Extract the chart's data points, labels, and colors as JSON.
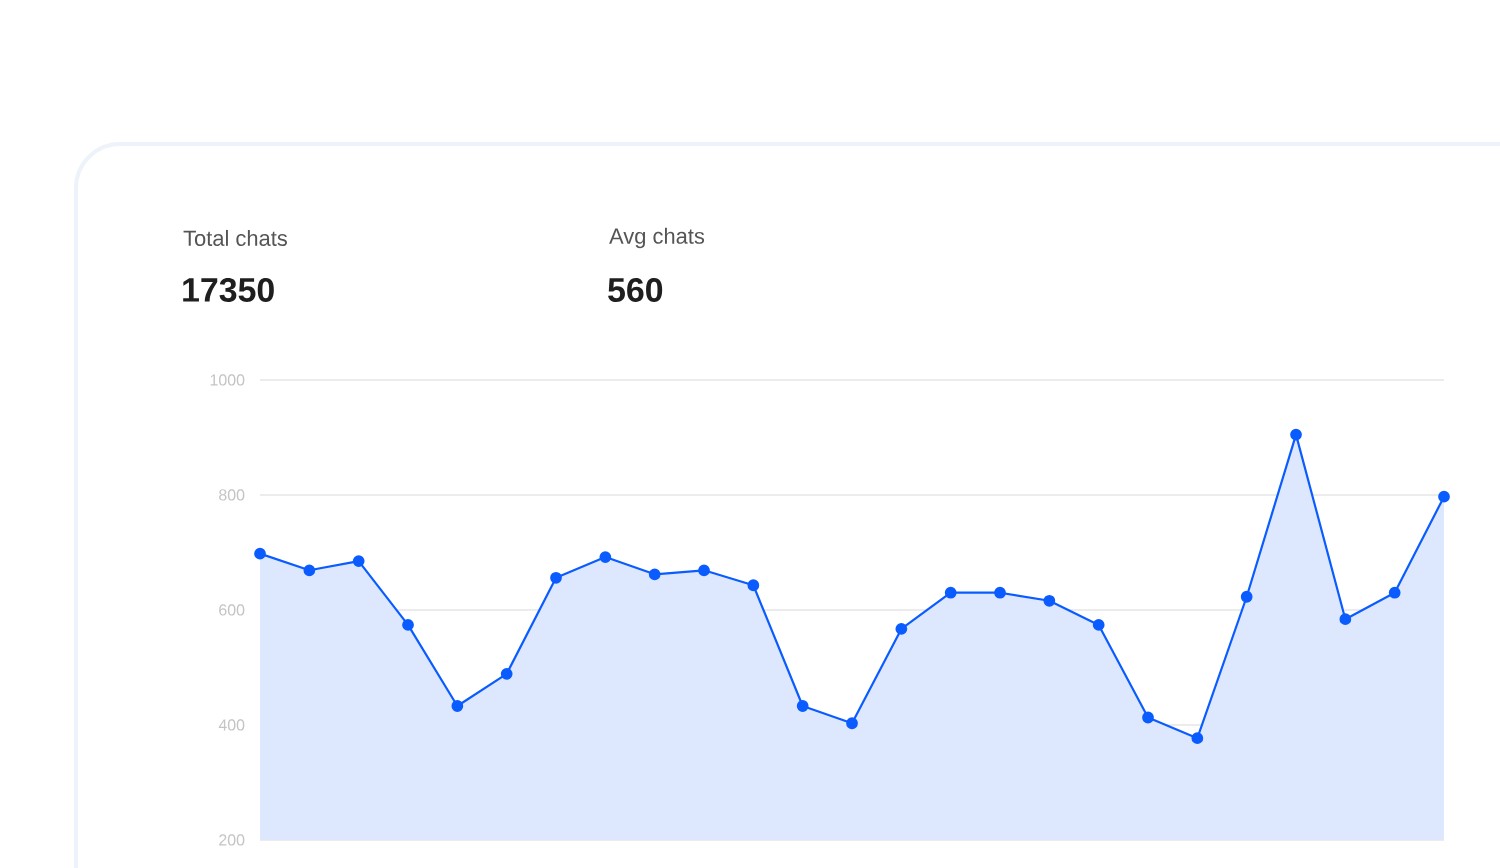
{
  "chart_data": {
    "type": "area",
    "annotations": [
      "Total chats",
      "17350",
      "Avg chats",
      "560"
    ],
    "categories": [
      null,
      null,
      null,
      null,
      null,
      null,
      null,
      null,
      null,
      null,
      null,
      null,
      null,
      null,
      null,
      null,
      null,
      null,
      null,
      null,
      null,
      null,
      null,
      null,
      null
    ],
    "series": [
      {
        "color": "#0a5cff",
        "values": [
          698,
          669,
          685,
          574,
          433,
          489,
          656,
          692,
          662,
          669,
          643,
          433,
          403,
          567,
          630,
          630,
          616,
          574,
          413,
          377,
          623,
          905,
          584,
          630,
          797
        ]
      }
    ],
    "ylim": [
      200,
      1000
    ],
    "yticks": [
      200,
      400,
      600,
      800,
      1000
    ],
    "grid": "y",
    "tick_labels": "y",
    "marker": "circle",
    "line_style": "solid"
  }
}
